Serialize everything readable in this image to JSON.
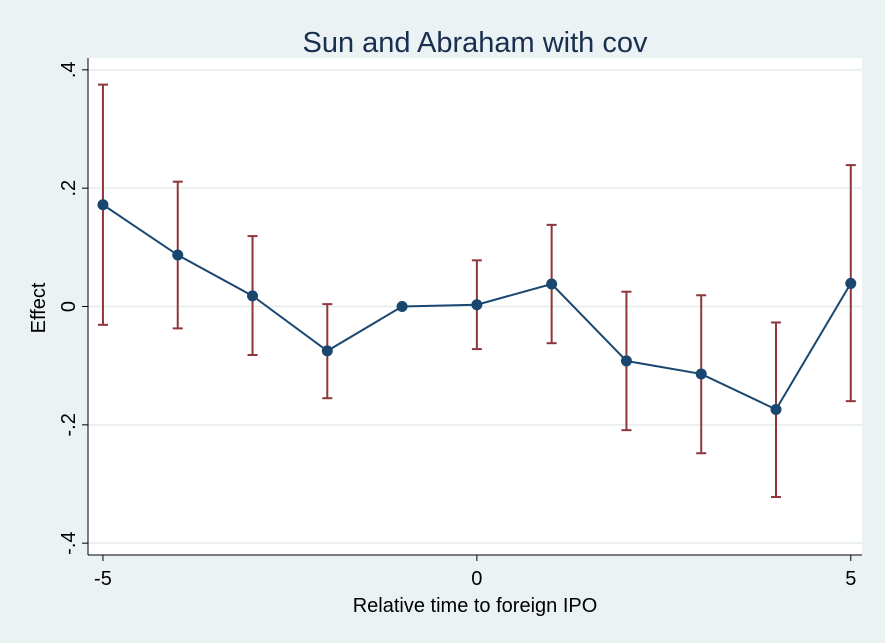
{
  "chart_data": {
    "type": "line",
    "title": "Sun and Abraham with cov",
    "xlabel": "Relative time to foreign IPO",
    "ylabel": "Effect",
    "xlim": [
      -5.2,
      5.15
    ],
    "ylim": [
      -0.42,
      0.42
    ],
    "xticks": [
      -5,
      0,
      5
    ],
    "xtick_labels": [
      "-5",
      "0",
      "5"
    ],
    "yticks": [
      -0.4,
      -0.2,
      0,
      0.2,
      0.4
    ],
    "ytick_labels": [
      "-.4",
      "-.2",
      "0",
      ".2",
      ".4"
    ],
    "grid": true,
    "colors": {
      "background": "#eaf2f3",
      "plot_background": "#ffffff",
      "grid": "#e4ecee",
      "line": "#1a476f",
      "marker": "#1a476f",
      "error_bar": "#90353b"
    },
    "series": [
      {
        "x": [
          -5,
          -4,
          -3,
          -2,
          -1,
          0,
          1,
          2,
          3,
          4,
          5
        ],
        "y": [
          0.172,
          0.087,
          0.018,
          -0.075,
          0.0,
          0.003,
          0.038,
          -0.092,
          -0.114,
          -0.174,
          0.039
        ],
        "ci_low": [
          -0.031,
          -0.037,
          -0.082,
          -0.155,
          null,
          -0.072,
          -0.062,
          -0.209,
          -0.248,
          -0.322,
          -0.16
        ],
        "ci_high": [
          0.375,
          0.211,
          0.119,
          0.004,
          null,
          0.078,
          0.138,
          0.025,
          0.019,
          -0.027,
          0.239
        ]
      }
    ]
  }
}
